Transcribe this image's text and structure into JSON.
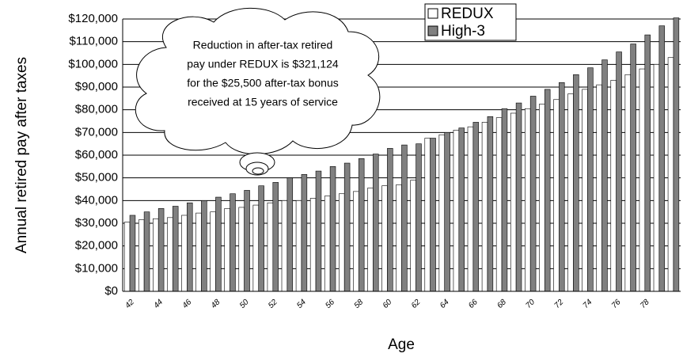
{
  "chart_data": {
    "type": "bar",
    "y_label": "Annual retired pay after taxes",
    "x_label": "Age",
    "annotation": [
      "Reduction in after-tax retired",
      "pay under REDUX is $321,124",
      "for the $25,500 after-tax bonus",
      "received at 15 years of service"
    ],
    "categories": [
      42,
      null,
      44,
      null,
      46,
      null,
      48,
      null,
      50,
      null,
      52,
      null,
      54,
      null,
      56,
      null,
      58,
      null,
      60,
      null,
      62,
      null,
      64,
      null,
      66,
      null,
      68,
      null,
      70,
      null,
      72,
      null,
      74,
      null,
      76,
      null,
      78,
      null,
      null
    ],
    "series": [
      {
        "name": "REDUX",
        "color": "#ffffff",
        "values": [
          30500,
          31500,
          32000,
          32500,
          33500,
          34500,
          35000,
          36500,
          37000,
          38000,
          39000,
          40000,
          40000,
          41000,
          42000,
          43000,
          44000,
          45500,
          46500,
          47000,
          49000,
          67500,
          69000,
          71000,
          72500,
          74500,
          76500,
          78500,
          80500,
          82500,
          84500,
          87000,
          89000,
          91000,
          93000,
          95500,
          98000,
          100000,
          103000
        ]
      },
      {
        "name": "High-3",
        "color": "#808080",
        "values": [
          33500,
          35000,
          36500,
          37500,
          39000,
          40000,
          41500,
          43000,
          44500,
          46500,
          48000,
          50000,
          51500,
          53000,
          55000,
          56500,
          58500,
          60500,
          63000,
          64500,
          65000,
          67500,
          70000,
          72000,
          74500,
          77000,
          80500,
          83000,
          86000,
          89000,
          92000,
          95500,
          98500,
          102000,
          105500,
          109000,
          113000,
          117000,
          120500
        ]
      }
    ],
    "ylim": [
      0,
      120000
    ],
    "yticks": [
      {
        "value": 0,
        "label": "$0"
      },
      {
        "value": 10000,
        "label": "$10,000"
      },
      {
        "value": 20000,
        "label": "$20,000"
      },
      {
        "value": 30000,
        "label": "$30,000"
      },
      {
        "value": 40000,
        "label": "$40,000"
      },
      {
        "value": 50000,
        "label": "$50,000"
      },
      {
        "value": 60000,
        "label": "$60,000"
      },
      {
        "value": 70000,
        "label": "$70,000"
      },
      {
        "value": 80000,
        "label": "$80,000"
      },
      {
        "value": 90000,
        "label": "$90,000"
      },
      {
        "value": 100000,
        "label": "$100,000"
      },
      {
        "value": 110000,
        "label": "$110,000"
      },
      {
        "value": 120000,
        "label": "$120,000"
      }
    ],
    "grid": true,
    "legend": "upper right"
  }
}
